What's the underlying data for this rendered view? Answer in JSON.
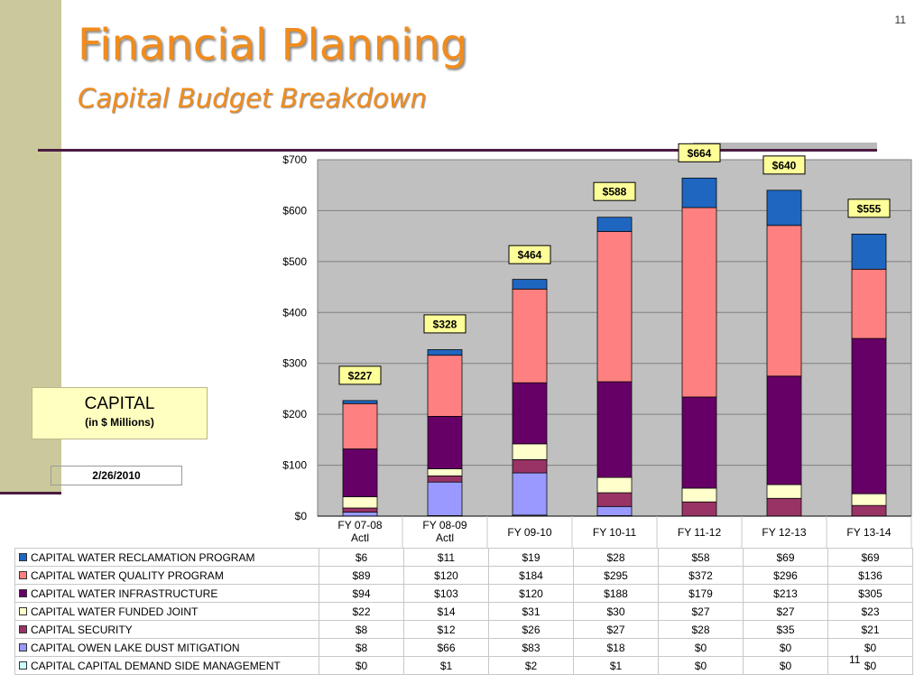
{
  "slide": {
    "page_number": "11",
    "title": "Financial Planning",
    "subtitle": "Capital Budget Breakdown",
    "capital_label": "CAPITAL",
    "capital_unit": "(in $ Millions)",
    "date": "2/26/2010"
  },
  "chart_data": {
    "type": "bar",
    "stacked": true,
    "categories": [
      "FY 07-08\nActl",
      "FY 08-09\nActl",
      "FY 09-10",
      "FY 10-11",
      "FY 11-12",
      "FY 12-13",
      "FY 13-14"
    ],
    "series": [
      {
        "name": "CAPITAL WATER RECLAMATION PROGRAM",
        "color": "#1f66c1",
        "values": [
          "$6",
          "$11",
          "$19",
          "$28",
          "$58",
          "$69",
          "$69"
        ]
      },
      {
        "name": "CAPITAL WATER QUALITY PROGRAM",
        "color": "#ff8080",
        "values": [
          "$89",
          "$120",
          "$184",
          "$295",
          "$372",
          "$296",
          "$136"
        ]
      },
      {
        "name": "CAPITAL WATER INFRASTRUCTURE",
        "color": "#660066",
        "values": [
          "$94",
          "$103",
          "$120",
          "$188",
          "$179",
          "$213",
          "$305"
        ]
      },
      {
        "name": "CAPITAL WATER FUNDED JOINT",
        "color": "#ffffcc",
        "values": [
          "$22",
          "$14",
          "$31",
          "$30",
          "$27",
          "$27",
          "$23"
        ]
      },
      {
        "name": "CAPITAL SECURITY",
        "color": "#993366",
        "values": [
          "$8",
          "$12",
          "$26",
          "$27",
          "$28",
          "$35",
          "$21"
        ]
      },
      {
        "name": "CAPITAL OWEN LAKE DUST MITIGATION",
        "color": "#9999ff",
        "values": [
          "$8",
          "$66",
          "$83",
          "$18",
          "$0",
          "$0",
          "$0"
        ]
      },
      {
        "name": "CAPITAL CAPITAL DEMAND SIDE MANAGEMENT",
        "color": "#ccffff",
        "values": [
          "$0",
          "$1",
          "$2",
          "$1",
          "$0",
          "$0",
          "$0"
        ]
      }
    ],
    "totals": [
      "$227",
      "$328",
      "$464",
      "$588",
      "$664",
      "$640",
      "$555"
    ],
    "ylim": [
      0,
      700
    ],
    "yticks": [
      "$0",
      "$100",
      "$200",
      "$300",
      "$400",
      "$500",
      "$600",
      "$700"
    ],
    "grid": true,
    "xlabel": "",
    "ylabel": ""
  }
}
